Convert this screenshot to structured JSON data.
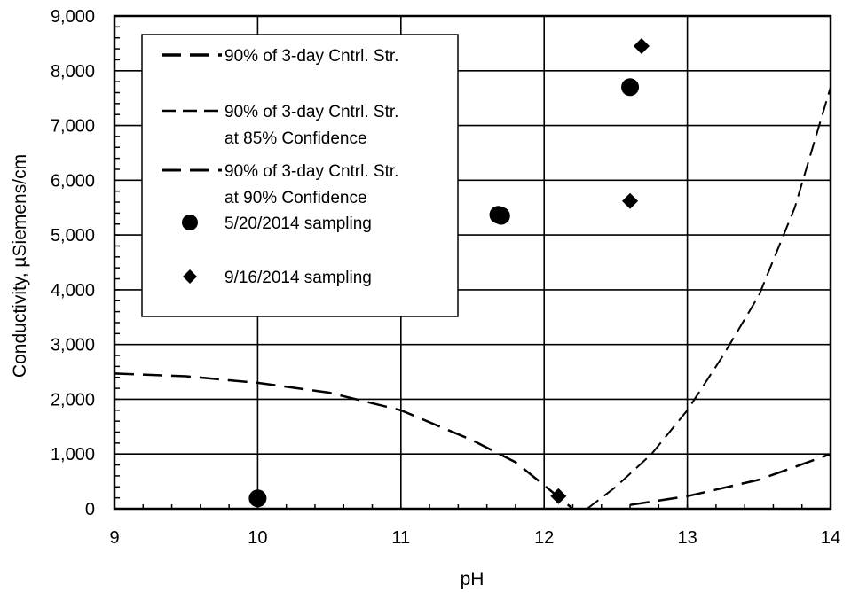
{
  "chart_data": {
    "type": "scatter",
    "xlabel": "pH",
    "ylabel": "Conductivity, µSiemens/cm",
    "xlim": [
      9,
      14
    ],
    "ylim": [
      0,
      9000
    ],
    "x_ticks": [
      9,
      10,
      11,
      12,
      13,
      14
    ],
    "x_tick_labels": [
      "9",
      "10",
      "11",
      "12",
      "13",
      "14"
    ],
    "y_ticks": [
      0,
      1000,
      2000,
      3000,
      4000,
      5000,
      6000,
      7000,
      8000,
      9000
    ],
    "y_tick_labels": [
      "0",
      "1,000",
      "2,000",
      "3,000",
      "4,000",
      "5,000",
      "6,000",
      "7,000",
      "8,000",
      "9,000"
    ],
    "grid": true,
    "legend_position": "top-left",
    "series": [
      {
        "name": "90% of 3-day Cntrl. Str.",
        "kind": "line",
        "dash": "long",
        "line_width": 3,
        "legend_line1": "90% of 3-day Cntrl. Str.",
        "legend_line2": "",
        "x": [],
        "y": []
      },
      {
        "name": "90% of 3-day Cntrl. Str. at 85% Confidence",
        "kind": "line",
        "dash": "medium",
        "line_width": 2,
        "legend_line1": "90% of 3-day Cntrl. Str.",
        "legend_line2": "at 85% Confidence",
        "x": [
          12.3,
          12.5,
          12.75,
          13.0,
          13.25,
          13.5,
          13.75,
          14.0
        ],
        "y": [
          0,
          400,
          1000,
          1800,
          2800,
          3900,
          5500,
          7700
        ]
      },
      {
        "name": "90% of 3-day Cntrl. Str. at 90% Confidence",
        "kind": "line",
        "dash": "long",
        "line_width": 2.5,
        "legend_line1": "90% of 3-day Cntrl. Str.",
        "legend_line2": "at 90% Confidence",
        "segments": [
          {
            "x": [
              9.0,
              9.5,
              10.0,
              10.5,
              11.0,
              11.5,
              11.8,
              12.0,
              12.2
            ],
            "y": [
              2470,
              2420,
              2300,
              2120,
              1800,
              1250,
              850,
              430,
              0
            ]
          },
          {
            "x": [
              12.6,
              13.0,
              13.5,
              14.0
            ],
            "y": [
              70,
              230,
              530,
              1000
            ]
          }
        ]
      },
      {
        "name": "5/20/2014 sampling",
        "kind": "marker",
        "marker": "circle",
        "legend_line1": "5/20/2014 sampling",
        "legend_line2": "",
        "x": [
          10.0,
          11.68,
          11.7,
          12.6
        ],
        "y": [
          190,
          5370,
          5350,
          7700
        ]
      },
      {
        "name": "9/16/2014 sampling",
        "kind": "marker",
        "marker": "diamond",
        "legend_line1": "9/16/2014 sampling",
        "legend_line2": "",
        "x": [
          12.1,
          12.6,
          12.68
        ],
        "y": [
          230,
          5620,
          8450
        ]
      }
    ]
  }
}
